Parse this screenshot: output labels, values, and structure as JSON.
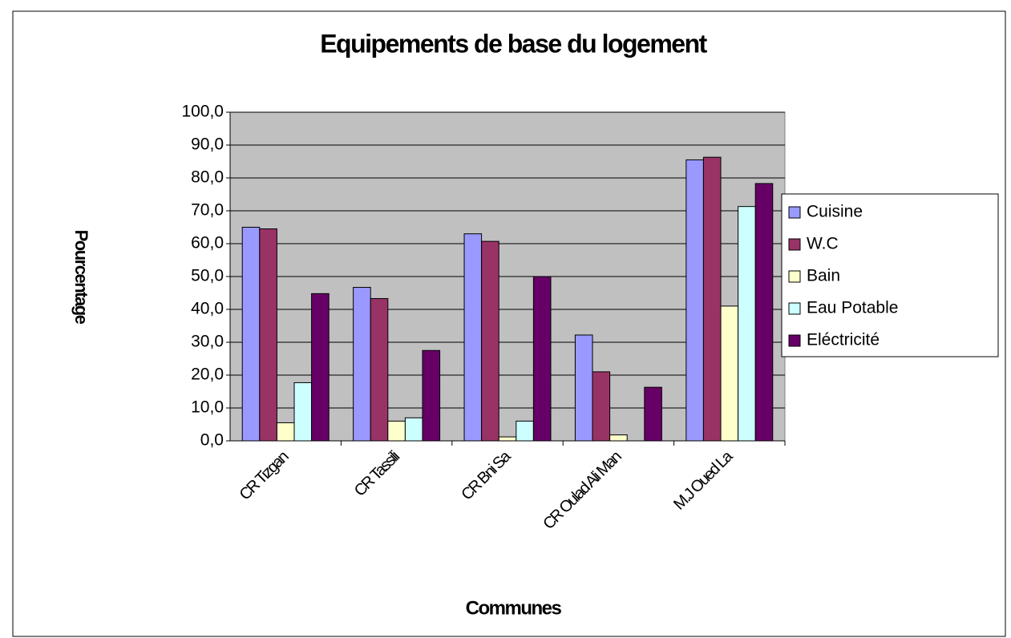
{
  "chart_data": {
    "type": "bar",
    "title": "Equipements de base du logement",
    "xlabel": "Communes",
    "ylabel": "Pourcentage",
    "categories": [
      "CR Tizgan",
      "CR Tassili",
      "CR Bni Sa",
      "CR Oulad Ali Man",
      "M.J Oued La"
    ],
    "series": [
      {
        "name": "Cuisine",
        "color": "#9999ff",
        "values": [
          65.0,
          46.7,
          63.0,
          32.2,
          85.5
        ]
      },
      {
        "name": "W.C",
        "color": "#993366",
        "values": [
          64.5,
          43.3,
          60.7,
          21.0,
          86.3
        ]
      },
      {
        "name": "Bain",
        "color": "#ffffcc",
        "values": [
          5.5,
          6.0,
          1.2,
          1.8,
          41.0
        ]
      },
      {
        "name": "Eau Potable",
        "color": "#ccffff",
        "values": [
          17.7,
          7.0,
          6.0,
          null,
          71.3
        ]
      },
      {
        "name": "Eléctricité",
        "color": "#660066",
        "values": [
          44.8,
          27.5,
          50.0,
          16.3,
          78.3
        ]
      }
    ],
    "ylim": [
      0,
      100
    ],
    "yticks": [
      {
        "value": 0,
        "label": "0,0"
      },
      {
        "value": 10,
        "label": "10,0"
      },
      {
        "value": 20,
        "label": "20,0"
      },
      {
        "value": 30,
        "label": "30,0"
      },
      {
        "value": 40,
        "label": "40,0"
      },
      {
        "value": 50,
        "label": "50,0"
      },
      {
        "value": 60,
        "label": "60,0"
      },
      {
        "value": 70,
        "label": "70,0"
      },
      {
        "value": 80,
        "label": "80,0"
      },
      {
        "value": 90,
        "label": "90,0"
      },
      {
        "value": 100,
        "label": "100,0"
      }
    ],
    "grid": true,
    "legend": "right",
    "plot_background": "#c0c0c0"
  }
}
